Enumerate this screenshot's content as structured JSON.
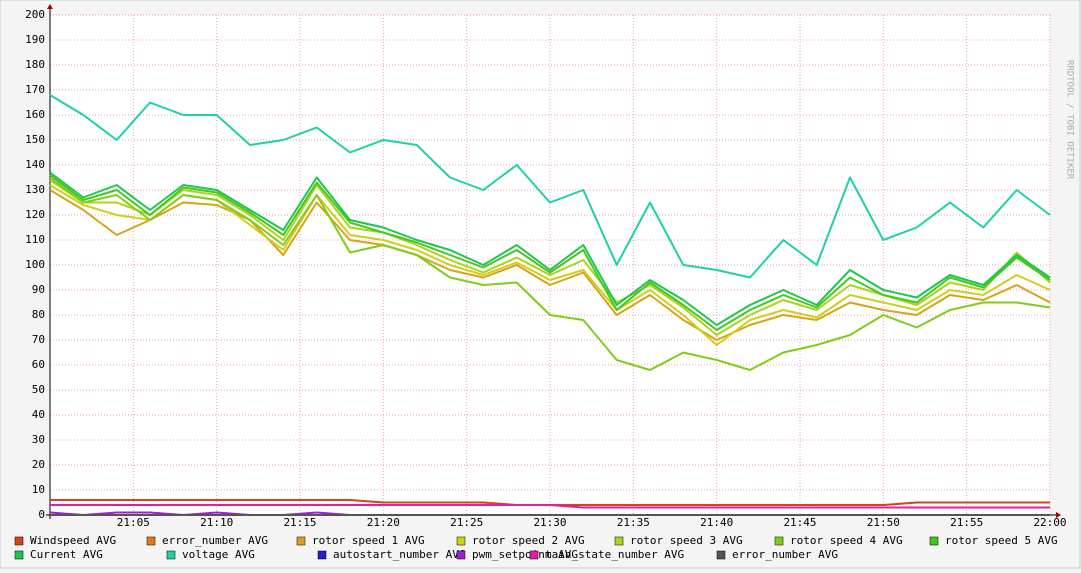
{
  "chart_data": {
    "type": "line",
    "watermark": "RRDTOOL / TOBI OETIKER",
    "x": [
      "21:00",
      "21:02",
      "21:04",
      "21:06",
      "21:08",
      "21:10",
      "21:12",
      "21:14",
      "21:16",
      "21:18",
      "21:20",
      "21:22",
      "21:24",
      "21:26",
      "21:28",
      "21:30",
      "21:32",
      "21:34",
      "21:36",
      "21:38",
      "21:40",
      "21:42",
      "21:44",
      "21:46",
      "21:48",
      "21:50",
      "21:52",
      "21:54",
      "21:56",
      "21:58",
      "22:00"
    ],
    "xlim": [
      "21:00",
      "22:00"
    ],
    "xticks": [
      "21:05",
      "21:10",
      "21:15",
      "21:20",
      "21:25",
      "21:30",
      "21:35",
      "21:40",
      "21:45",
      "21:50",
      "21:55",
      "22:00"
    ],
    "ylim": [
      0,
      200
    ],
    "yticks": [
      0,
      10,
      20,
      30,
      40,
      50,
      60,
      70,
      80,
      90,
      100,
      110,
      120,
      130,
      140,
      150,
      160,
      170,
      180,
      190,
      200
    ],
    "grid": true,
    "series": [
      {
        "name": "Windspeed AVG",
        "color": "#d8421c",
        "values": [
          6,
          6,
          6,
          6,
          6,
          6,
          6,
          6,
          6,
          6,
          5,
          5,
          5,
          5,
          4,
          4,
          4,
          4,
          4,
          4,
          4,
          4,
          4,
          4,
          4,
          4,
          5,
          5,
          5,
          5,
          5
        ]
      },
      {
        "name": "error_number AVG",
        "color": "#e07b1a",
        "values": [
          0,
          0,
          0,
          0,
          0,
          0,
          0,
          0,
          0,
          0,
          0,
          0,
          0,
          0,
          0,
          0,
          0,
          0,
          0,
          0,
          0,
          0,
          0,
          0,
          0,
          0,
          0,
          0,
          0,
          0,
          0
        ]
      },
      {
        "name": "rotor speed 1 AVG",
        "color": "#d9a21a",
        "values": [
          130,
          122,
          112,
          118,
          125,
          124,
          118,
          104,
          125,
          110,
          108,
          104,
          98,
          95,
          100,
          92,
          97,
          80,
          88,
          78,
          70,
          76,
          80,
          78,
          85,
          82,
          80,
          88,
          86,
          92,
          85
        ]
      },
      {
        "name": "rotor speed 2 AVG",
        "color": "#cfcf1a",
        "values": [
          132,
          124,
          120,
          118,
          128,
          126,
          116,
          106,
          128,
          112,
          110,
          106,
          100,
          96,
          101,
          94,
          98,
          82,
          90,
          80,
          68,
          78,
          82,
          79,
          88,
          85,
          82,
          90,
          88,
          96,
          90
        ]
      },
      {
        "name": "rotor speed 3 AVG",
        "color": "#a8d41a",
        "values": [
          134,
          125,
          125,
          120,
          130,
          128,
          120,
          110,
          132,
          115,
          113,
          108,
          102,
          97,
          103,
          96,
          102,
          85,
          92,
          83,
          72,
          80,
          86,
          82,
          92,
          88,
          84,
          93,
          90,
          105,
          93
        ]
      },
      {
        "name": "rotor speed 4 AVG",
        "color": "#80cc1a",
        "values": [
          135,
          125,
          128,
          118,
          128,
          126,
          118,
          108,
          128,
          105,
          108,
          104,
          95,
          92,
          93,
          80,
          78,
          62,
          58,
          65,
          62,
          58,
          65,
          68,
          72,
          80,
          75,
          82,
          85,
          85,
          83
        ]
      },
      {
        "name": "rotor speed 5 AVG",
        "color": "#44c81a",
        "values": [
          136,
          126,
          130,
          120,
          131,
          129,
          121,
          112,
          133,
          117,
          113,
          109,
          104,
          99,
          106,
          97,
          106,
          82,
          93,
          84,
          74,
          82,
          88,
          83,
          95,
          88,
          85,
          95,
          91,
          103,
          94
        ]
      },
      {
        "name": "Current AVG",
        "color": "#1ac850",
        "values": [
          137,
          127,
          132,
          122,
          132,
          130,
          122,
          114,
          135,
          118,
          115,
          110,
          106,
          100,
          108,
          98,
          108,
          84,
          94,
          86,
          76,
          84,
          90,
          84,
          98,
          90,
          87,
          96,
          92,
          104,
          95
        ]
      },
      {
        "name": "voltage AVG",
        "color": "#1ad2a8",
        "values": [
          168,
          160,
          150,
          165,
          160,
          160,
          148,
          150,
          155,
          145,
          150,
          148,
          135,
          130,
          140,
          125,
          130,
          100,
          125,
          100,
          98,
          95,
          110,
          100,
          135,
          110,
          115,
          125,
          115,
          130,
          120
        ]
      },
      {
        "name": "autostart_number AVG",
        "color": "#2020d0",
        "values": [
          0,
          0,
          0,
          0,
          0,
          0,
          0,
          0,
          0,
          0,
          0,
          0,
          0,
          0,
          0,
          0,
          0,
          0,
          0,
          0,
          0,
          0,
          0,
          0,
          0,
          0,
          0,
          0,
          0,
          0,
          0
        ]
      },
      {
        "name": "pwm_setpoint AVG",
        "color": "#a020d0",
        "values": [
          1,
          0,
          1,
          1,
          0,
          1,
          0,
          0,
          1,
          0,
          0,
          0,
          0,
          0,
          0,
          0,
          0,
          0,
          0,
          0,
          0,
          0,
          0,
          0,
          0,
          0,
          0,
          0,
          0,
          0,
          0
        ]
      },
      {
        "name": "main_state_number AVG",
        "color": "#e020a0",
        "values": [
          4,
          4,
          4,
          4,
          4,
          4,
          4,
          4,
          4,
          4,
          4,
          4,
          4,
          4,
          4,
          4,
          3,
          3,
          3,
          3,
          3,
          3,
          3,
          3,
          3,
          3,
          3,
          3,
          3,
          3,
          3
        ]
      },
      {
        "name": "error_number AVG",
        "color": "#555555",
        "values": [
          0,
          0,
          0,
          0,
          0,
          0,
          0,
          0,
          0,
          0,
          0,
          0,
          0,
          0,
          0,
          0,
          0,
          0,
          0,
          0,
          0,
          0,
          0,
          0,
          0,
          0,
          0,
          0,
          0,
          0,
          0
        ]
      }
    ]
  }
}
